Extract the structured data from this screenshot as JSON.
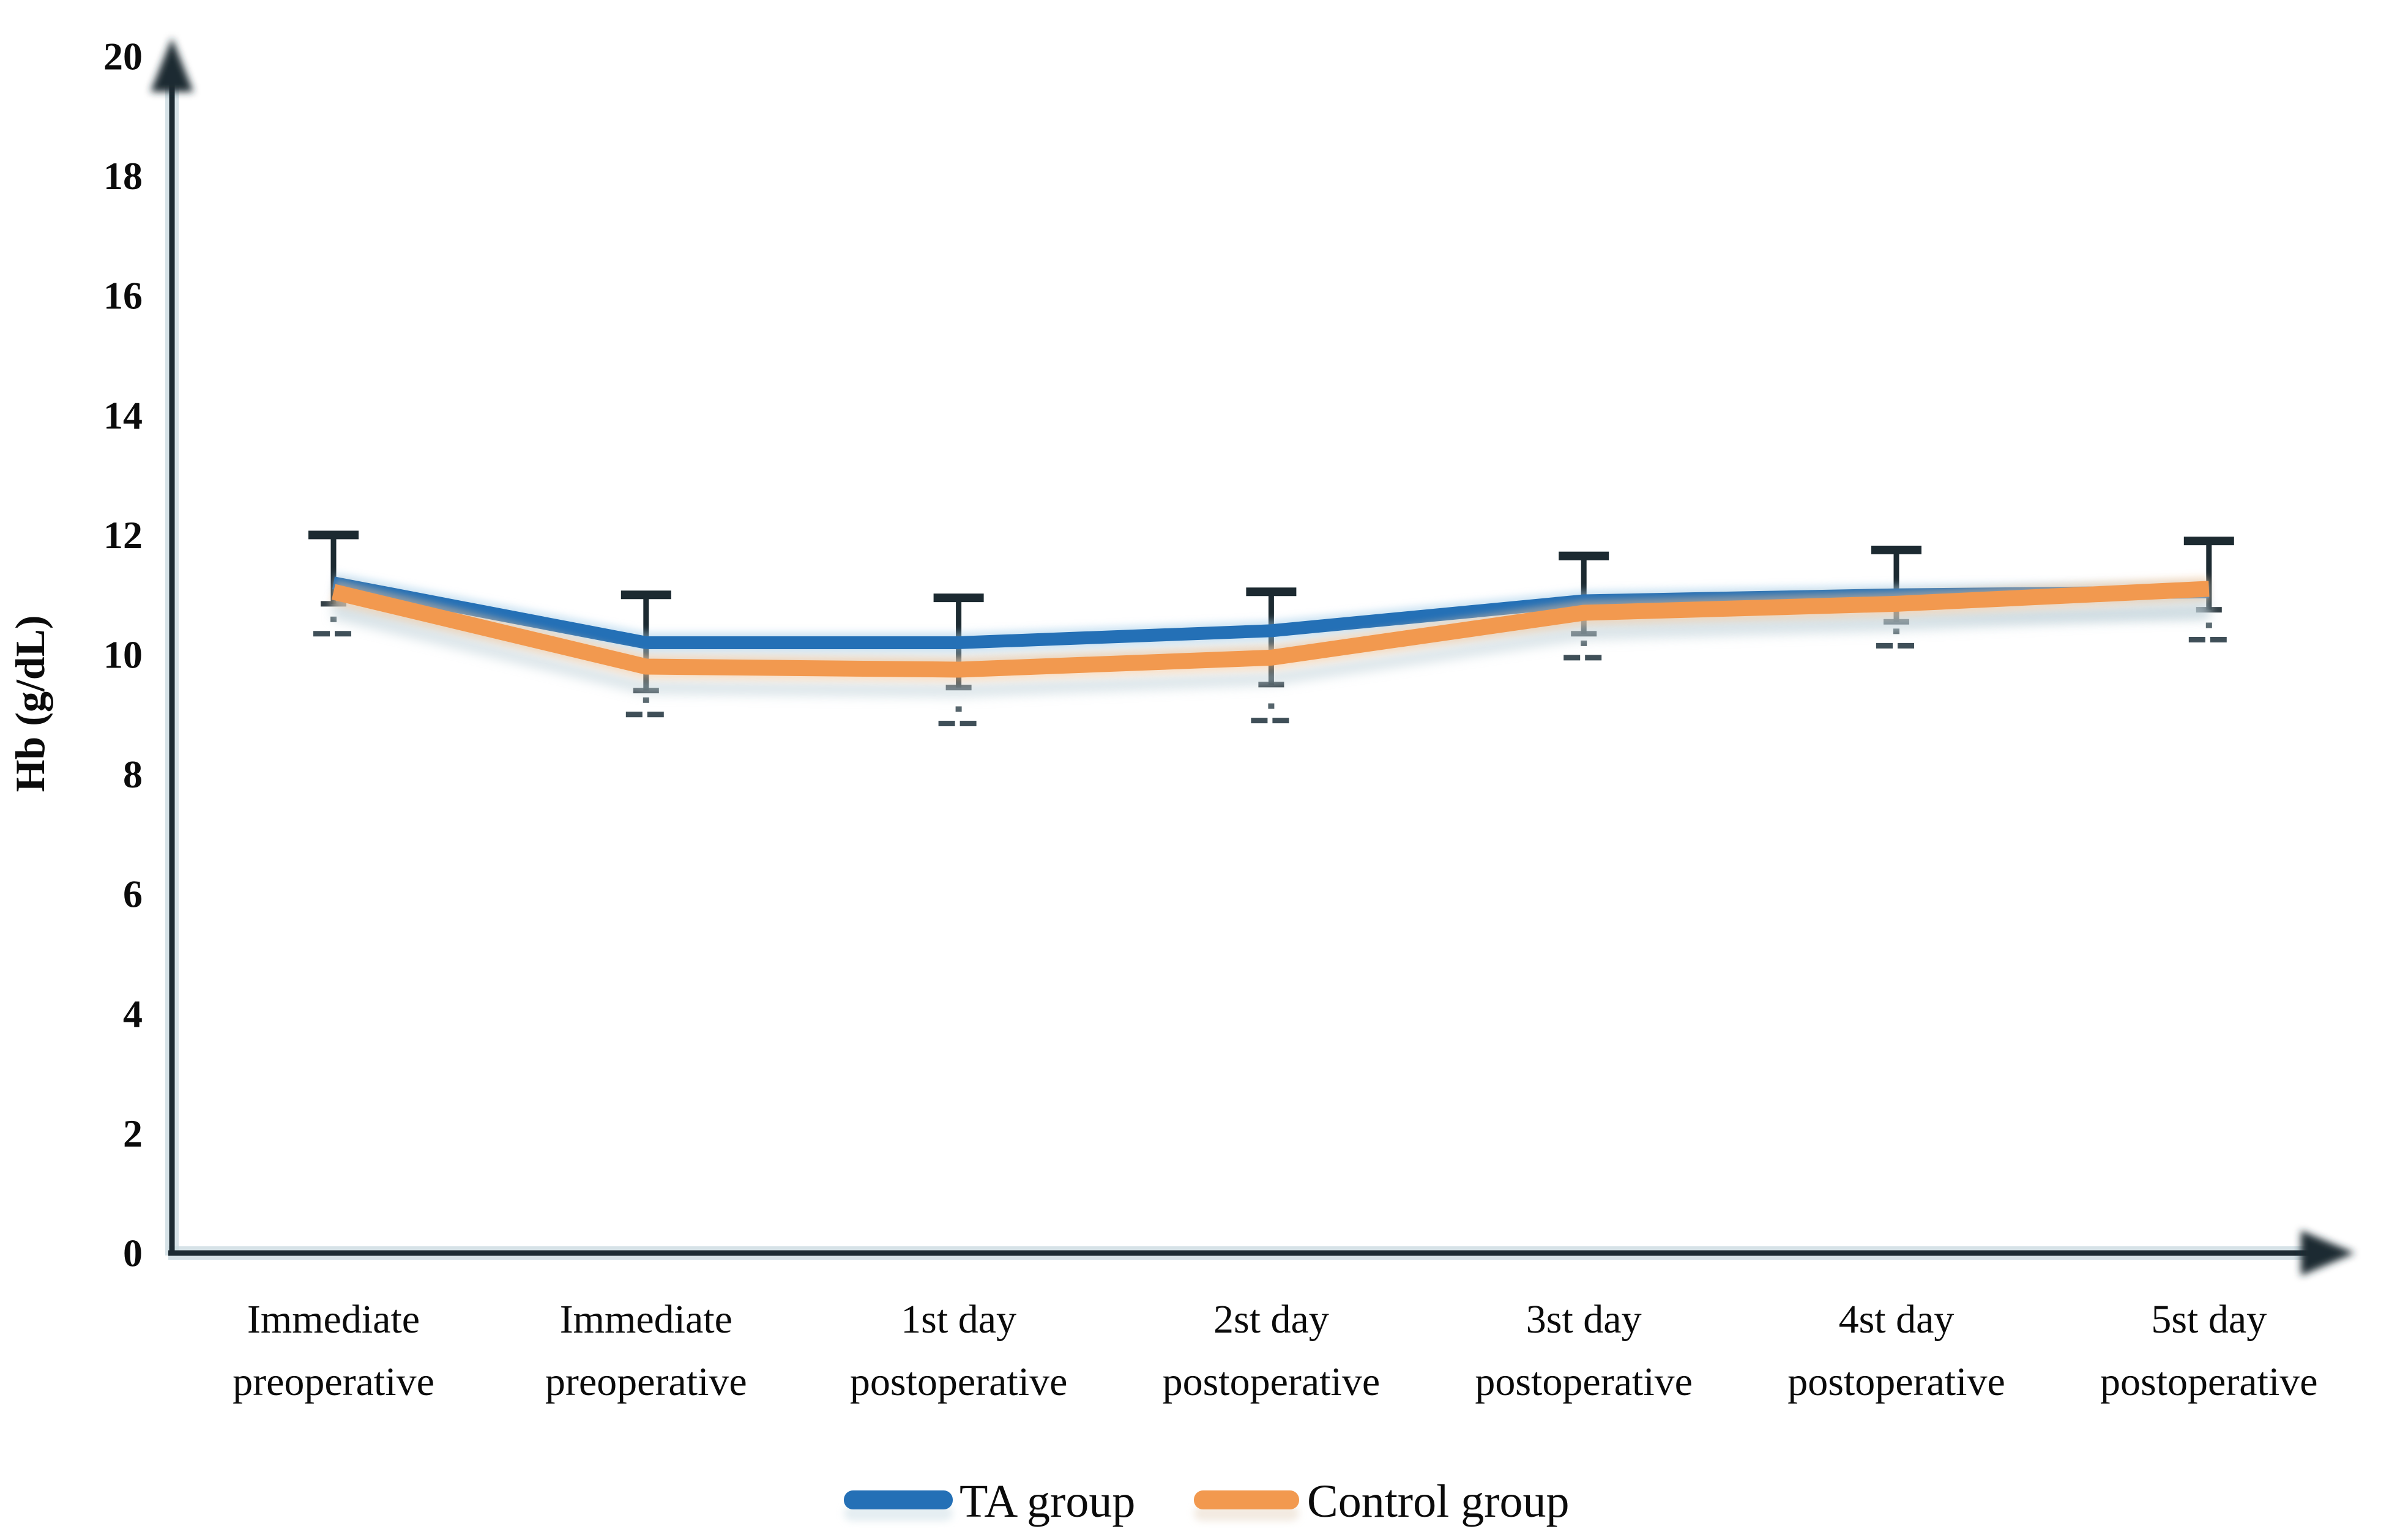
{
  "figure": {
    "background": "#ffffff"
  },
  "chart_data": {
    "type": "line",
    "title": "",
    "xlabel": "",
    "ylabel": "Hb (g/dL)",
    "ylim": [
      0,
      20
    ],
    "ytick_step": 2,
    "grid": false,
    "legend_position": "bottom-center",
    "categories": [
      "Immediate preoperative",
      "Immediate preoperative",
      "1st day postoperative",
      "2st day postoperative",
      "3st day postoperative",
      "4st day postoperative",
      "5st day postoperative"
    ],
    "series": [
      {
        "name": "TA group",
        "color": "#2470b6",
        "halo_color": "#9ecae8",
        "values": [
          11.2,
          10.2,
          10.2,
          10.4,
          10.9,
          11.0,
          11.05
        ]
      },
      {
        "name": "Control group",
        "color": "#f2994f",
        "halo_color": "#f9c695",
        "values": [
          11.05,
          9.8,
          9.75,
          9.95,
          10.7,
          10.85,
          11.1
        ]
      }
    ],
    "error_bars": {
      "color": "#1c2a31",
      "cap_color": "#2b3d46",
      "upper": [
        12.0,
        11.0,
        10.95,
        11.05,
        11.65,
        11.75,
        11.9
      ],
      "inner_lower": [
        10.85,
        9.4,
        9.45,
        9.5,
        10.35,
        10.55,
        10.75
      ],
      "lower_cap": [
        10.35,
        9.0,
        8.85,
        8.9,
        9.95,
        10.15,
        10.25
      ]
    }
  }
}
